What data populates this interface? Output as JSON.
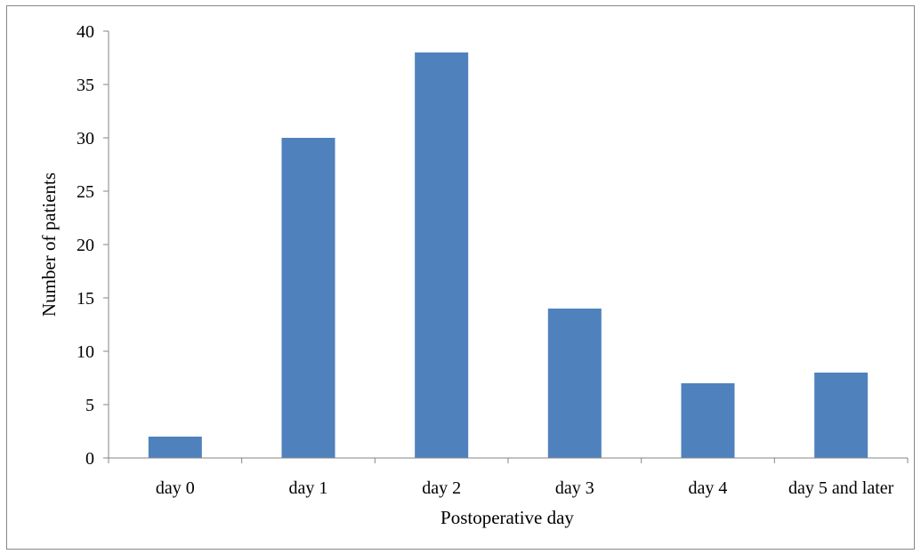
{
  "chart_data": {
    "type": "bar",
    "title": "",
    "xlabel": "Postoperative day",
    "ylabel": "Number of patients",
    "categories": [
      "day 0",
      "day 1",
      "day 2",
      "day 3",
      "day 4",
      "day 5 and later"
    ],
    "values": [
      2,
      30,
      38,
      14,
      7,
      8
    ],
    "ylim": [
      0,
      40
    ],
    "yticks": [
      "0",
      "5",
      "10",
      "15",
      "20",
      "25",
      "30",
      "35",
      "40"
    ],
    "grid": false,
    "legend": "none",
    "bar_color": "#4f81bd",
    "axis_color": "#868686"
  }
}
